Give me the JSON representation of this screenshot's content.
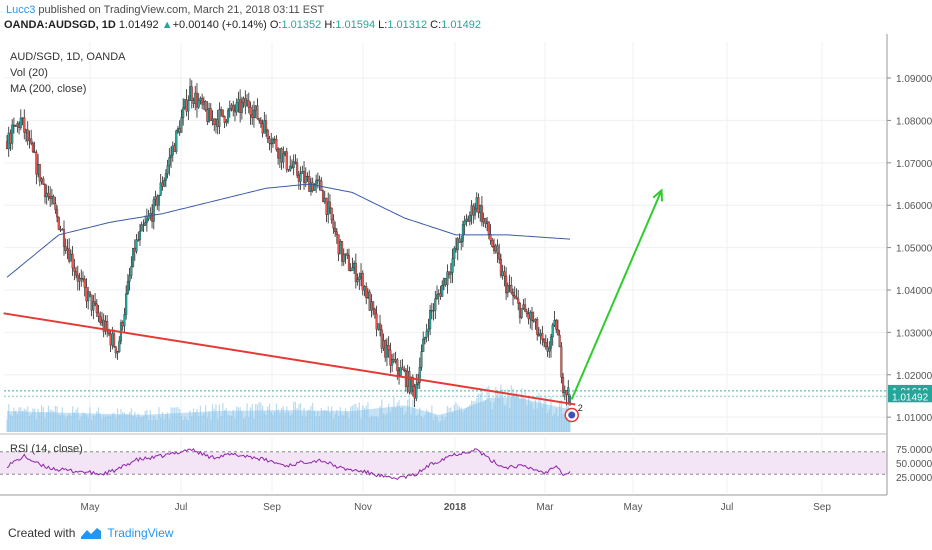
{
  "header": {
    "author": "Lucc3",
    "published_text": " published on TradingView.com, March 21, 2018 03:11 EST",
    "symbol": "OANDA:AUDSGD, 1D",
    "last": "1.01492",
    "change_arrow": "▲",
    "change": "+0.00140 (+0.14%)",
    "o_label": "O:",
    "o_value": "1.01352",
    "h_label": "H:",
    "h_value": "1.01594",
    "l_label": "L:",
    "l_value": "1.01312",
    "c_label": "C:",
    "c_value": "1.01492"
  },
  "legend": {
    "instrument": "AUD/SGD, 1D, OANDA",
    "volume": "Vol (20)",
    "ma": "MA (200, close)",
    "rsi": "RSI (14, close)"
  },
  "footer": {
    "created_with": "Created with",
    "brand": "TradingView"
  },
  "colors": {
    "candle_up": "#26a69a",
    "candle_down": "#ef5350",
    "wick": "#222222",
    "ma_line": "#3b5ba5",
    "volume": "#7fbde6",
    "trendline": "#e53935",
    "arrow": "#2ecc2e",
    "rsi_line": "#8e24aa",
    "rsi_band": "#f3e5f5",
    "author_link": "#2196f3"
  },
  "chart_data": {
    "type": "candlestick",
    "instrument": "AUD/SGD",
    "timeframe": "1D",
    "x_ticks": [
      "May",
      "Jul",
      "Sep",
      "Nov",
      "2018",
      "Mar",
      "May",
      "Jul",
      "Sep"
    ],
    "price_axis_ticks": [
      "1.09000",
      "1.08000",
      "1.07000",
      "1.06000",
      "1.05000",
      "1.04000",
      "1.03000",
      "1.02000",
      "1.01000"
    ],
    "price_range": [
      1.0065,
      1.0985
    ],
    "price_labels": [
      {
        "value": 1.01619,
        "text": "1.01619"
      },
      {
        "value": 1.01492,
        "text": "1.01492"
      }
    ],
    "close_anchors": [
      [
        0,
        1.075
      ],
      [
        8,
        1.08
      ],
      [
        18,
        1.068
      ],
      [
        30,
        1.056
      ],
      [
        42,
        1.042
      ],
      [
        55,
        1.032
      ],
      [
        64,
        1.026
      ],
      [
        74,
        1.05
      ],
      [
        86,
        1.06
      ],
      [
        98,
        1.076
      ],
      [
        106,
        1.087
      ],
      [
        118,
        1.08
      ],
      [
        130,
        1.082
      ],
      [
        140,
        1.084
      ],
      [
        150,
        1.078
      ],
      [
        162,
        1.07
      ],
      [
        172,
        1.066
      ],
      [
        182,
        1.064
      ],
      [
        194,
        1.048
      ],
      [
        206,
        1.042
      ],
      [
        215,
        1.03
      ],
      [
        222,
        1.023
      ],
      [
        230,
        1.02
      ],
      [
        236,
        1.016
      ],
      [
        244,
        1.033
      ],
      [
        256,
        1.045
      ],
      [
        266,
        1.056
      ],
      [
        272,
        1.061
      ],
      [
        280,
        1.052
      ],
      [
        288,
        1.042
      ],
      [
        296,
        1.036
      ],
      [
        304,
        1.033
      ],
      [
        312,
        1.025
      ],
      [
        318,
        1.032
      ],
      [
        322,
        1.018
      ],
      [
        326,
        1.0149
      ]
    ],
    "ma200_anchors": [
      [
        0,
        1.043
      ],
      [
        30,
        1.053
      ],
      [
        60,
        1.056
      ],
      [
        90,
        1.058
      ],
      [
        120,
        1.061
      ],
      [
        150,
        1.064
      ],
      [
        175,
        1.065
      ],
      [
        200,
        1.063
      ],
      [
        230,
        1.057
      ],
      [
        260,
        1.053
      ],
      [
        290,
        1.053
      ],
      [
        326,
        1.052
      ]
    ],
    "volume_anchors": [
      [
        0,
        0.22
      ],
      [
        40,
        0.2
      ],
      [
        80,
        0.18
      ],
      [
        120,
        0.22
      ],
      [
        160,
        0.23
      ],
      [
        200,
        0.22
      ],
      [
        230,
        0.28
      ],
      [
        250,
        0.18
      ],
      [
        265,
        0.25
      ],
      [
        280,
        0.36
      ],
      [
        295,
        0.37
      ],
      [
        310,
        0.3
      ],
      [
        326,
        0.24
      ]
    ],
    "rsi": {
      "levels": [
        70,
        30
      ],
      "axis_ticks": [
        "75.0000",
        "50.0000",
        "25.0000"
      ],
      "anchors": [
        [
          0,
          45
        ],
        [
          10,
          62
        ],
        [
          20,
          45
        ],
        [
          30,
          38
        ],
        [
          42,
          35
        ],
        [
          55,
          30
        ],
        [
          64,
          38
        ],
        [
          74,
          55
        ],
        [
          86,
          60
        ],
        [
          98,
          68
        ],
        [
          106,
          75
        ],
        [
          118,
          60
        ],
        [
          130,
          65
        ],
        [
          140,
          62
        ],
        [
          150,
          55
        ],
        [
          162,
          45
        ],
        [
          172,
          52
        ],
        [
          182,
          55
        ],
        [
          194,
          40
        ],
        [
          206,
          35
        ],
        [
          215,
          28
        ],
        [
          222,
          22
        ],
        [
          230,
          25
        ],
        [
          236,
          28
        ],
        [
          244,
          45
        ],
        [
          256,
          63
        ],
        [
          266,
          70
        ],
        [
          272,
          74
        ],
        [
          280,
          55
        ],
        [
          288,
          42
        ],
        [
          296,
          45
        ],
        [
          304,
          40
        ],
        [
          312,
          32
        ],
        [
          318,
          48
        ],
        [
          322,
          30
        ],
        [
          326,
          33
        ]
      ]
    },
    "annotations": [
      {
        "type": "trendline",
        "from": [
          -2,
          1.0345
        ],
        "to": [
          329,
          1.013
        ]
      },
      {
        "type": "arrow",
        "from": [
          327,
          1.0142
        ],
        "to": [
          379,
          1.0635
        ]
      },
      {
        "type": "marker",
        "at": [
          327,
          1.0105
        ],
        "label": "2"
      }
    ]
  }
}
